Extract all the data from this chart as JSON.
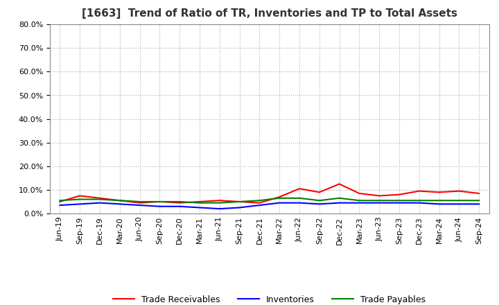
{
  "title": "[1663]  Trend of Ratio of TR, Inventories and TP to Total Assets",
  "x_labels": [
    "Jun-19",
    "Sep-19",
    "Dec-19",
    "Mar-20",
    "Jun-20",
    "Sep-20",
    "Dec-20",
    "Mar-21",
    "Jun-21",
    "Sep-21",
    "Dec-21",
    "Mar-22",
    "Jun-22",
    "Sep-22",
    "Dec-22",
    "Mar-23",
    "Jun-23",
    "Sep-23",
    "Dec-23",
    "Mar-24",
    "Jun-24",
    "Sep-24"
  ],
  "trade_receivables": [
    5.0,
    7.5,
    6.5,
    5.5,
    4.5,
    5.0,
    4.5,
    5.0,
    5.5,
    5.0,
    4.5,
    7.0,
    10.5,
    9.0,
    12.5,
    8.5,
    7.5,
    8.0,
    9.5,
    9.0,
    9.5,
    8.5
  ],
  "inventories": [
    3.5,
    4.0,
    4.5,
    4.0,
    3.5,
    3.0,
    3.0,
    2.5,
    2.0,
    2.5,
    3.5,
    4.5,
    4.5,
    4.0,
    4.5,
    4.5,
    4.5,
    4.5,
    4.5,
    4.0,
    4.0,
    4.0
  ],
  "trade_payables": [
    5.5,
    6.0,
    6.0,
    5.5,
    5.0,
    5.0,
    5.0,
    4.5,
    4.5,
    5.0,
    5.5,
    6.5,
    6.5,
    5.5,
    6.5,
    5.5,
    5.5,
    5.5,
    5.5,
    5.5,
    5.5,
    5.5
  ],
  "tr_color": "#FF0000",
  "inv_color": "#0000FF",
  "tp_color": "#008000",
  "ylim": [
    0,
    80
  ],
  "yticks": [
    0,
    10,
    20,
    30,
    40,
    50,
    60,
    70,
    80
  ],
  "background_color": "#FFFFFF",
  "plot_bg_color": "#FFFFFF",
  "grid_color": "#AAAAAA",
  "title_fontsize": 11,
  "tick_fontsize": 8
}
